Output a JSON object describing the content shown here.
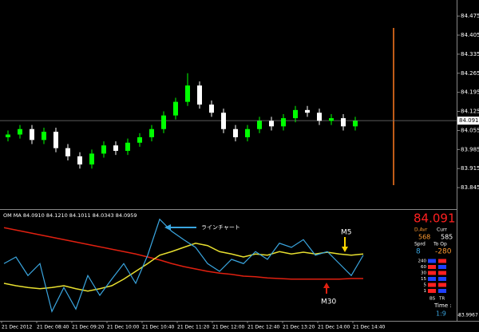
{
  "chart_data": [
    {
      "type": "candlestick",
      "ylim": [
        83.772,
        84.534
      ],
      "yticks": [
        84.475,
        84.405,
        84.335,
        84.265,
        84.195,
        84.125,
        84.055,
        83.985,
        83.915,
        83.845
      ],
      "current_price": 84.091,
      "up_color": "#00ff00",
      "down_color": "#ffffff",
      "open": [
        84.03,
        84.04,
        84.06,
        84.02,
        84.05,
        83.99,
        83.96,
        83.93,
        83.97,
        84.0,
        83.98,
        84.01,
        84.03,
        84.06,
        84.11,
        84.16,
        84.22,
        84.15,
        84.12,
        84.06,
        84.03,
        84.06,
        84.09,
        84.07,
        84.1,
        84.13,
        84.12,
        84.09,
        84.1,
        84.07
      ],
      "high": [
        84.055,
        84.075,
        84.075,
        84.065,
        84.065,
        84.005,
        83.975,
        83.985,
        84.015,
        84.015,
        84.025,
        84.045,
        84.075,
        84.125,
        84.175,
        84.265,
        84.235,
        84.165,
        84.135,
        84.075,
        84.075,
        84.105,
        84.105,
        84.115,
        84.145,
        84.145,
        84.135,
        84.115,
        84.115,
        84.105
      ],
      "low": [
        84.015,
        84.025,
        84.005,
        84.005,
        83.975,
        83.945,
        83.915,
        83.915,
        83.955,
        83.965,
        83.965,
        83.995,
        84.015,
        84.045,
        84.095,
        84.145,
        84.135,
        84.105,
        84.045,
        84.015,
        84.015,
        84.045,
        84.055,
        84.055,
        84.085,
        84.105,
        84.075,
        84.075,
        84.055,
        84.055
      ],
      "close": [
        84.04,
        84.06,
        84.02,
        84.05,
        83.99,
        83.96,
        83.93,
        83.97,
        84.0,
        83.98,
        84.01,
        84.03,
        84.06,
        84.11,
        84.16,
        84.22,
        84.15,
        84.12,
        84.06,
        84.03,
        84.06,
        84.09,
        84.07,
        84.1,
        84.13,
        84.12,
        84.09,
        84.1,
        84.07,
        84.09
      ]
    },
    {
      "type": "line",
      "title": "OM MA 84.0910 84.1210 84.1011 84.0343 84.0959",
      "ylim": [
        83.99,
        84.17
      ],
      "yticks": [
        83.9967
      ],
      "series": [
        {
          "name": "M30",
          "color": "#e02010",
          "values": [
            84.143,
            84.139,
            84.135,
            84.131,
            84.127,
            84.123,
            84.119,
            84.115,
            84.111,
            84.107,
            84.103,
            84.099,
            84.094,
            84.089,
            84.083,
            84.078,
            84.074,
            84.07,
            84.067,
            84.065,
            84.062,
            84.061,
            84.059,
            84.058,
            84.057,
            84.057,
            84.057,
            84.057,
            84.057,
            84.058,
            84.058
          ]
        },
        {
          "name": "M5",
          "color": "#e8e030",
          "values": [
            84.05,
            84.046,
            84.043,
            84.041,
            84.043,
            84.046,
            84.041,
            84.037,
            84.041,
            84.046,
            84.057,
            84.07,
            84.083,
            84.097,
            84.103,
            84.11,
            84.117,
            84.113,
            84.103,
            84.099,
            84.094,
            84.099,
            84.097,
            84.103,
            84.099,
            84.102,
            84.099,
            84.102,
            84.099,
            84.097,
            84.099
          ]
        },
        {
          "name": "ラインチャート",
          "color": "#3aa6e0",
          "values": [
            84.083,
            84.094,
            84.063,
            84.083,
            84.003,
            84.043,
            84.007,
            84.063,
            84.03,
            84.057,
            84.083,
            84.05,
            84.097,
            84.157,
            84.137,
            84.123,
            84.11,
            84.083,
            84.07,
            84.09,
            84.083,
            84.103,
            84.09,
            84.117,
            84.11,
            84.123,
            84.097,
            84.103,
            84.083,
            84.063,
            84.097
          ]
        }
      ],
      "time_labels": [
        "21 Dec 2012",
        "21 Dec 08:40",
        "21 Dec 09:20",
        "21 Dec 10:00",
        "21 Dec 10:40",
        "21 Dec 11:20",
        "21 Dec 12:00",
        "21 Dec 12:40",
        "21 Dec 13:20",
        "21 Dec 14:00",
        "21 Dec 14:40"
      ]
    }
  ],
  "info_panel": {
    "price": "84.091",
    "d_avr": "D.Avr",
    "curr": "Curr",
    "d_avr_value": "568",
    "curr_value": "585",
    "sprd": "Sprd",
    "to_op": "To Op",
    "sprd_value": "8",
    "to_op_value": "-280",
    "meter_labels": [
      "240",
      "60",
      "30",
      "15",
      "5",
      "1"
    ],
    "bs": "BS",
    "tr": "TR",
    "time": "Time :",
    "time_value": "1:9"
  }
}
